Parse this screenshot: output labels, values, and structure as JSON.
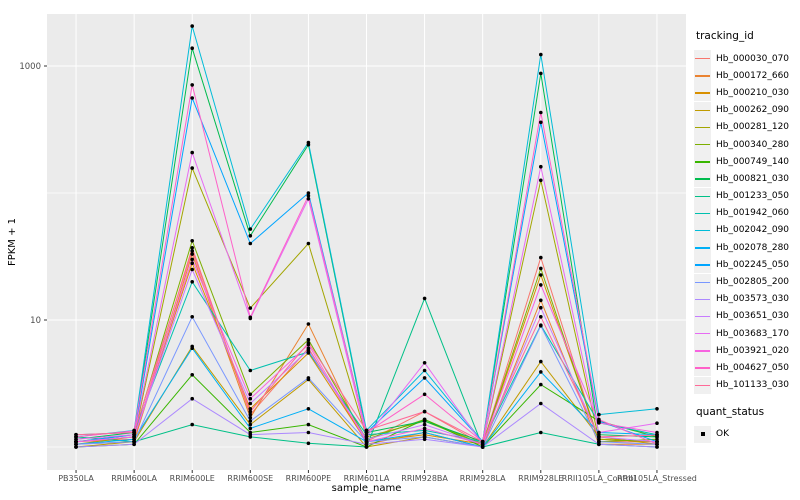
{
  "figure": {
    "background": "#FFFFFF",
    "panel_background": "#EBEBEB",
    "grid_color": "#FFFFFF",
    "axis_text_color": "#4D4D4D",
    "axis_title_color": "#000000",
    "tick_color": "#333333",
    "point_color": "#000000"
  },
  "legend": {
    "tracking_title": "tracking_id",
    "quant_title": "quant_status",
    "quant_items": [
      {
        "label": "OK"
      }
    ]
  },
  "chart_data": {
    "type": "line",
    "xlabel": "sample_name",
    "ylabel": "FPKM + 1",
    "y_scale": "log10",
    "y_major_ticks": [
      {
        "label": "10",
        "value": 10
      },
      {
        "label": "1000",
        "value": 1000
      }
    ],
    "y_minor_gridlines": [
      1,
      100
    ],
    "ylim_log10": [
      -0.19,
      3.41
    ],
    "grid": "on",
    "legend_position": "right",
    "categories": [
      "PB350LA",
      "RRIM600LA",
      "RRIM600LE",
      "RRIM600SE",
      "RRIM600PE",
      "RRIM601LA",
      "RRIM928BA",
      "RRIM928LA",
      "RRIM928LE",
      "RRII105LA_Control",
      "RRII105LA_Stressed"
    ],
    "series": [
      {
        "name": "Hb_000030_070",
        "color": "#F8766D",
        "values": [
          1.1,
          1.15,
          37,
          1.8,
          6.0,
          1.1,
          1.9,
          1.05,
          31,
          1.1,
          1.1
        ]
      },
      {
        "name": "Hb_000172_660",
        "color": "#EA8331",
        "values": [
          1.05,
          1.1,
          33,
          1.7,
          9.3,
          1.05,
          1.3,
          1.0,
          14.3,
          1.05,
          1.05
        ]
      },
      {
        "name": "Hb_000210_030",
        "color": "#D89000",
        "values": [
          1.1,
          1.2,
          28,
          2.0,
          5.5,
          1.1,
          1.25,
          1.05,
          22.6,
          1.15,
          1.1
        ]
      },
      {
        "name": "Hb_000262_090",
        "color": "#C09B00",
        "values": [
          1.0,
          1.1,
          6.2,
          1.5,
          3.4,
          1.0,
          1.2,
          1.0,
          4.7,
          1.2,
          1.05
        ]
      },
      {
        "name": "Hb_000281_120",
        "color": "#A3A500",
        "values": [
          1.05,
          1.2,
          157,
          12.4,
          40,
          1.2,
          1.6,
          1.05,
          126,
          1.15,
          1.1
        ]
      },
      {
        "name": "Hb_000340_280",
        "color": "#7CAE00",
        "values": [
          1.1,
          1.25,
          42,
          2.6,
          7.0,
          1.15,
          1.65,
          1.05,
          25.5,
          1.1,
          1.15
        ]
      },
      {
        "name": "Hb_000749_140",
        "color": "#39B600",
        "values": [
          1.0,
          1.05,
          3.7,
          1.3,
          1.5,
          1.0,
          1.65,
          1.0,
          3.1,
          1.6,
          1.2
        ]
      },
      {
        "name": "Hb_000821_030",
        "color": "#00BB4E",
        "values": [
          1.15,
          1.3,
          1380,
          46,
          240,
          1.3,
          1.6,
          1.1,
          875,
          1.25,
          1.2
        ]
      },
      {
        "name": "Hb_001233_050",
        "color": "#00C087",
        "values": [
          1.2,
          1.1,
          1.5,
          1.2,
          1.07,
          1.0,
          14.8,
          1.0,
          1.3,
          1.05,
          1.0
        ]
      },
      {
        "name": "Hb_001942_060",
        "color": "#00C0AF",
        "values": [
          1.25,
          1.3,
          20,
          4.0,
          5.6,
          1.25,
          1.35,
          1.1,
          9.1,
          1.55,
          1.25
        ]
      },
      {
        "name": "Hb_002042_090",
        "color": "#00BCD8",
        "values": [
          1.2,
          1.35,
          2060,
          52,
          250,
          1.35,
          4.0,
          1.1,
          1230,
          1.8,
          2.0
        ]
      },
      {
        "name": "Hb_002078_280",
        "color": "#00B0F6",
        "values": [
          1.05,
          1.15,
          6.0,
          1.4,
          2.0,
          1.1,
          1.3,
          1.0,
          3.9,
          1.3,
          1.25
        ]
      },
      {
        "name": "Hb_002245_050",
        "color": "#00A5FF",
        "values": [
          1.1,
          1.25,
          560,
          40,
          100,
          1.3,
          3.5,
          1.1,
          360,
          1.6,
          1.1
        ]
      },
      {
        "name": "Hb_002805_200",
        "color": "#7997FF",
        "values": [
          1.05,
          1.1,
          10.6,
          1.6,
          3.5,
          1.1,
          1.2,
          1.0,
          9.0,
          1.1,
          1.05
        ]
      },
      {
        "name": "Hb_003573_030",
        "color": "#AC88FF",
        "values": [
          1.0,
          1.05,
          2.4,
          1.25,
          1.3,
          1.05,
          1.15,
          1.0,
          2.2,
          1.05,
          1.0
        ]
      },
      {
        "name": "Hb_003651_030",
        "color": "#C77CFF",
        "values": [
          1.1,
          1.2,
          25,
          2.2,
          5.8,
          1.15,
          1.5,
          1.05,
          12.5,
          1.2,
          1.1
        ]
      },
      {
        "name": "Hb_003683_170",
        "color": "#E76BF3",
        "values": [
          1.15,
          1.25,
          208,
          10.3,
          90,
          1.2,
          4.6,
          1.05,
          161,
          1.3,
          1.54
        ]
      },
      {
        "name": "Hb_003921_020",
        "color": "#F763E0",
        "values": [
          1.1,
          1.2,
          30,
          2.4,
          6.4,
          1.1,
          1.4,
          1.05,
          18.9,
          1.55,
          1.3
        ]
      },
      {
        "name": "Hb_004627_050",
        "color": "#FF61C9",
        "values": [
          1.2,
          1.34,
          710,
          10.5,
          95,
          1.3,
          2.6,
          1.1,
          430,
          1.65,
          1.05
        ]
      },
      {
        "name": "Hb_101133_030",
        "color": "#FF6A98",
        "values": [
          1.25,
          1.3,
          35,
          1.9,
          6.6,
          1.35,
          1.9,
          1.1,
          10.6,
          1.2,
          1.24
        ]
      }
    ]
  }
}
